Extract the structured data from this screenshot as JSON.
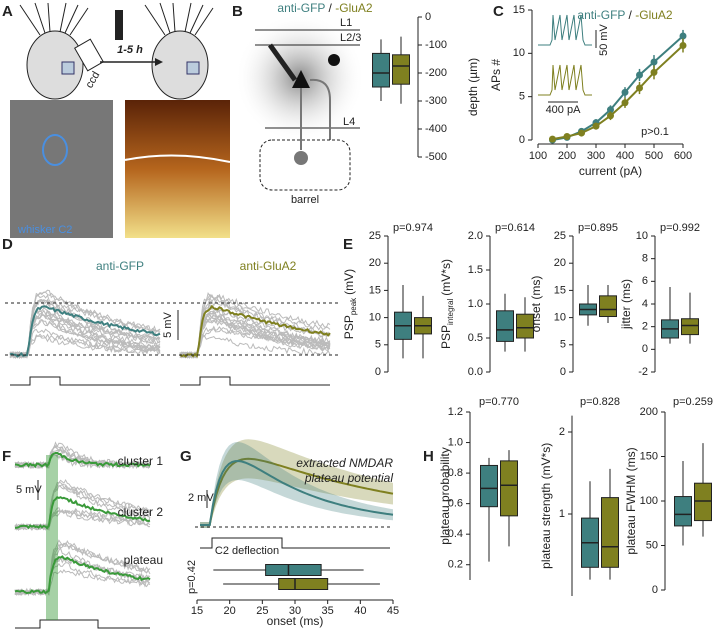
{
  "panel_labels": [
    "A",
    "B",
    "C",
    "D",
    "E",
    "F",
    "G",
    "H"
  ],
  "panel_a": {
    "camera": "ccd",
    "duration": "1-5 h",
    "region": "whisker C2"
  },
  "panel_b_diagram": {
    "layers": [
      "L1",
      "L2/3",
      "L4"
    ],
    "barrel": "barrel"
  },
  "panel_c_inset": {
    "voltage_scale": "50 mV",
    "current_scale": "400 pA"
  },
  "panel_d": {
    "traces": [
      "anti-GFP",
      "anti-GluA2"
    ],
    "scale": "5 mV"
  },
  "panel_f": {
    "clusters": [
      "cluster 1",
      "cluster 2",
      "plateau"
    ],
    "scale": "5 mV"
  },
  "panel_g_traces": {
    "title_lines": [
      "extracted NMDAR",
      "plateau potential"
    ],
    "scale": "2 mV",
    "stimulus": "C2 deflection"
  },
  "chart_data": [
    {
      "type": "box",
      "ylabel": "depth (µm)",
      "ylim": [
        -500,
        0
      ],
      "yticks": [
        0,
        -100,
        -200,
        -300,
        -400,
        -500
      ],
      "legend": {
        "separator": "/"
      },
      "series": [
        {
          "name": "anti-GFP",
          "color": "#3e7f7f",
          "whisker_low": -300,
          "q1": -250,
          "median": -200,
          "q3": -130,
          "whisker_high": -80
        },
        {
          "name": "-GluA2",
          "color": "#7f8020",
          "whisker_low": -310,
          "q1": -240,
          "median": -175,
          "q3": -135,
          "whisker_high": -70
        }
      ]
    },
    {
      "type": "line",
      "xlabel": "current (pA)",
      "ylabel": "APs #",
      "annotation": "p>0.1",
      "legend": {
        "separator": "/"
      },
      "x": [
        150,
        200,
        250,
        300,
        350,
        400,
        450,
        500,
        600
      ],
      "xlim": [
        100,
        600
      ],
      "xticks": [
        100,
        200,
        300,
        400,
        500,
        600
      ],
      "ylim": [
        0,
        15
      ],
      "yticks": [
        0,
        5,
        10,
        15
      ],
      "series": [
        {
          "name": "anti-GFP",
          "color": "#3e7f7f",
          "values": [
            0,
            0.3,
            1,
            2,
            3.5,
            5.5,
            7.5,
            9,
            12
          ],
          "errors": [
            0.1,
            0.2,
            0.3,
            0.4,
            0.5,
            0.6,
            0.7,
            0.8,
            0.7
          ]
        },
        {
          "name": "-GluA2",
          "color": "#7f8020",
          "values": [
            0.1,
            0.4,
            0.8,
            1.6,
            2.8,
            4.3,
            6,
            7.8,
            10.9
          ],
          "errors": [
            0.1,
            0.2,
            0.3,
            0.4,
            0.5,
            0.6,
            0.7,
            0.8,
            0.8
          ]
        }
      ]
    },
    {
      "type": "box",
      "ylabel": {
        "text": "PSP",
        "sub": "peak",
        "unit": "(mV)"
      },
      "annotation": "p=0.974",
      "ylim": [
        0,
        25
      ],
      "yticks": [
        0,
        5,
        10,
        15,
        20,
        25
      ],
      "series": [
        {
          "color": "#3e7f7f",
          "whisker_low": 2.5,
          "q1": 6,
          "median": 8.5,
          "q3": 11,
          "whisker_high": 16
        },
        {
          "color": "#7f8020",
          "whisker_low": 2.5,
          "q1": 7,
          "median": 8.5,
          "q3": 10,
          "whisker_high": 14
        }
      ]
    },
    {
      "type": "box",
      "ylabel": {
        "text": "PSP",
        "sub": "integral",
        "unit": "(mV*s)"
      },
      "annotation": "p=0.614",
      "ylim": [
        0,
        2
      ],
      "yticks": [
        {
          "value": 0,
          "label": "0.0"
        },
        0.5,
        {
          "value": 1,
          "label": "1.0"
        },
        1.5,
        {
          "value": 2,
          "label": "2.0"
        }
      ],
      "series": [
        {
          "color": "#3e7f7f",
          "whisker_low": 0.3,
          "q1": 0.45,
          "median": 0.62,
          "q3": 0.9,
          "whisker_high": 1.15
        },
        {
          "color": "#7f8020",
          "whisker_low": 0.3,
          "q1": 0.5,
          "median": 0.65,
          "q3": 0.85,
          "whisker_high": 1.1
        }
      ]
    },
    {
      "type": "box",
      "ylabel": "onset (ms)",
      "annotation": "p=0.895",
      "ylim": [
        0,
        25
      ],
      "yticks": [
        0,
        5,
        10,
        15,
        20,
        25
      ],
      "series": [
        {
          "color": "#3e7f7f",
          "whisker_low": 8.5,
          "q1": 10.5,
          "median": 11.5,
          "q3": 12.5,
          "whisker_high": 16
        },
        {
          "color": "#7f8020",
          "whisker_low": 9,
          "q1": 10.2,
          "median": 11.5,
          "q3": 14,
          "whisker_high": 16
        }
      ]
    },
    {
      "type": "box",
      "ylabel": "jitter (ms)",
      "annotation": "p=0.992",
      "ylim": [
        -2,
        10
      ],
      "yticks": [
        -2,
        0,
        2,
        4,
        6,
        8,
        10
      ],
      "series": [
        {
          "color": "#3e7f7f",
          "whisker_low": 0.5,
          "q1": 1,
          "median": 1.8,
          "q3": 2.6,
          "whisker_high": 5.5
        },
        {
          "color": "#7f8020",
          "whisker_low": 0.5,
          "q1": 1.3,
          "median": 2.1,
          "q3": 2.7,
          "whisker_high": 5
        }
      ]
    },
    {
      "type": "box",
      "orientation": "horizontal",
      "xlabel": "onset (ms)",
      "annotation": "p=0.42",
      "xlim": [
        15,
        45
      ],
      "xticks": [
        15,
        20,
        25,
        30,
        35,
        40,
        45
      ],
      "series": [
        {
          "color": "#3e7f7f",
          "whisker_low": 17.5,
          "q1": 25.5,
          "median": 29,
          "q3": 34,
          "whisker_high": 40.5
        },
        {
          "color": "#7f8020",
          "whisker_low": 19,
          "q1": 27.5,
          "median": 30,
          "q3": 35,
          "whisker_high": 43
        }
      ]
    },
    {
      "type": "box",
      "ylabel": "plateau probability",
      "annotation": "p=0.770",
      "ylim": [
        0.1,
        1.2
      ],
      "yticks": [
        0.2,
        0.4,
        0.6,
        0.8,
        {
          "value": 1,
          "label": "1.0"
        },
        1.2
      ],
      "series": [
        {
          "color": "#3e7f7f",
          "whisker_low": 0.22,
          "q1": 0.58,
          "median": 0.7,
          "q3": 0.85,
          "whisker_high": 0.9
        },
        {
          "color": "#7f8020",
          "whisker_low": 0.32,
          "q1": 0.52,
          "median": 0.72,
          "q3": 0.88,
          "whisker_high": 0.95
        }
      ]
    },
    {
      "type": "box",
      "ylabel": "plateau strength (mV*s)",
      "annotation": "p=0.828",
      "ylim": [
        0,
        2.2
      ],
      "yticks": [
        1,
        2
      ],
      "series": [
        {
          "color": "#3e7f7f",
          "whisker_low": 0.2,
          "q1": 0.35,
          "median": 0.65,
          "q3": 0.95,
          "whisker_high": 1.4
        },
        {
          "color": "#7f8020",
          "whisker_low": 0.2,
          "q1": 0.35,
          "median": 0.6,
          "q3": 1.2,
          "whisker_high": 1.55
        }
      ]
    },
    {
      "type": "box",
      "ylabel": "plateau FWHM (ms)",
      "annotation": "p=0.259",
      "ylim": [
        0,
        200
      ],
      "yticks": [
        0,
        50,
        100,
        150,
        200
      ],
      "series": [
        {
          "color": "#3e7f7f",
          "whisker_low": 50,
          "q1": 72,
          "median": 85,
          "q3": 105,
          "whisker_high": 145
        },
        {
          "color": "#7f8020",
          "whisker_low": 60,
          "q1": 78,
          "median": 100,
          "q3": 120,
          "whisker_high": 165
        }
      ]
    }
  ]
}
